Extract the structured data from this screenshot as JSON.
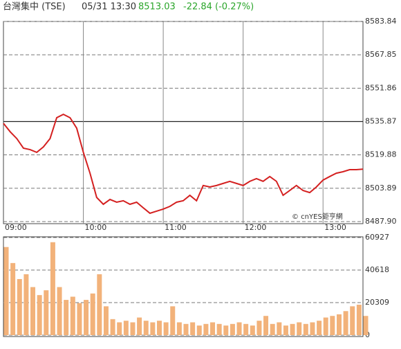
{
  "header": {
    "name": "台灣集中 (TSE)",
    "time": "05/31 13:30",
    "price": "8513.03",
    "change": "-22.84 (-0.27%)",
    "watermark": "© cnYES鉅亨網"
  },
  "chart_data": [
    {
      "type": "line",
      "color": "#d42020",
      "reference": 8535.87,
      "x": [
        "09:00",
        "09:05",
        "09:10",
        "09:15",
        "09:20",
        "09:25",
        "09:30",
        "09:35",
        "09:40",
        "09:45",
        "09:50",
        "09:55",
        "10:00",
        "10:05",
        "10:10",
        "10:15",
        "10:20",
        "10:25",
        "10:30",
        "10:35",
        "10:40",
        "10:45",
        "10:50",
        "10:55",
        "11:00",
        "11:05",
        "11:10",
        "11:15",
        "11:20",
        "11:25",
        "11:30",
        "11:35",
        "11:40",
        "11:45",
        "11:50",
        "11:55",
        "12:00",
        "12:05",
        "12:10",
        "12:15",
        "12:20",
        "12:25",
        "12:30",
        "12:35",
        "12:40",
        "12:45",
        "12:50",
        "12:55",
        "13:00",
        "13:05",
        "13:10",
        "13:15",
        "13:20",
        "13:25",
        "13:30"
      ],
      "values": [
        8535.0,
        8531.0,
        8527.7,
        8523.1,
        8522.4,
        8521.1,
        8523.7,
        8527.7,
        8537.7,
        8539.3,
        8537.7,
        8532.7,
        8521.1,
        8511.1,
        8499.5,
        8496.2,
        8498.5,
        8497.2,
        8497.9,
        8496.2,
        8497.2,
        8494.5,
        8491.9,
        8492.9,
        8493.9,
        8495.2,
        8497.2,
        8497.9,
        8500.5,
        8497.9,
        8505.2,
        8504.5,
        8505.2,
        8506.2,
        8507.2,
        8506.2,
        8505.2,
        8507.2,
        8508.5,
        8507.2,
        8509.5,
        8507.2,
        8500.5,
        8502.8,
        8505.2,
        8502.8,
        8501.8,
        8504.5,
        8507.8,
        8509.5,
        8511.1,
        8511.8,
        8512.8,
        8512.8,
        8513.03
      ],
      "ylim": [
        8487.9,
        8583.84
      ],
      "yticks": [
        8583.84,
        8567.85,
        8551.86,
        8535.87,
        8519.88,
        8503.89,
        {
          "value": 8487.9,
          "label": "8487.90"
        }
      ],
      "xlim": [
        "09:00",
        "13:30"
      ],
      "xticks": [
        "09:00",
        "10:00",
        "11:00",
        "12:00",
        "13:00"
      ],
      "grid": true
    },
    {
      "type": "bar",
      "color": "#f2b27a",
      "values": [
        55000,
        45000,
        35000,
        38000,
        30000,
        25000,
        28000,
        58000,
        30000,
        22000,
        24000,
        20000,
        22000,
        26000,
        38000,
        18000,
        10000,
        8000,
        9000,
        8000,
        11000,
        9000,
        8000,
        9000,
        8000,
        18000,
        8000,
        7000,
        8000,
        6000,
        7000,
        8000,
        7000,
        6000,
        7000,
        8000,
        7000,
        6000,
        9000,
        12000,
        7000,
        8000,
        6000,
        7000,
        8000,
        7000,
        8000,
        9000,
        11000,
        12000,
        13000,
        15000,
        18000,
        19000,
        12000
      ],
      "ylim": [
        0,
        60927
      ],
      "yticks": [
        60927,
        40618,
        20309,
        0
      ],
      "grid": true
    }
  ]
}
